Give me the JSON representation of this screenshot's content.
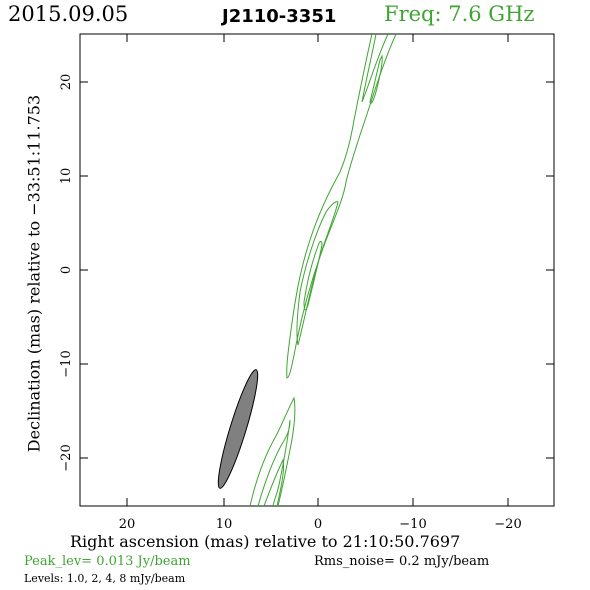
{
  "header": {
    "date": "2015.09.05",
    "source": "J2110-3351",
    "freq": "Freq: 7.6 GHz"
  },
  "axes": {
    "xlabel": "Right ascension (mas) relative to 21:10:50.7697",
    "ylabel": "Declination (mas) relative to −33:51:11.753",
    "x_ticks": [
      "20",
      "10",
      "0",
      "−10",
      "−20"
    ],
    "y_ticks": [
      "20",
      "10",
      "0",
      "−10",
      "−20"
    ]
  },
  "footer": {
    "peak": "Peak_lev=  0.013 Jy/beam",
    "rms": "Rms_noise=  0.2 mJy/beam",
    "levels": "Levels: 1.0,   2,   4,   8 mJy/beam"
  },
  "colors": {
    "contour": "#3fa532",
    "beam_fill": "#808080",
    "text_accent": "#3fa532"
  }
}
